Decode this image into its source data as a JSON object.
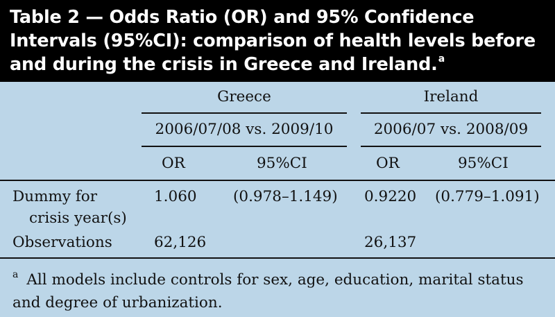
{
  "title": "Table 2 — Odds Ratio (OR) and 95% Confidence Intervals (95%CI): comparison of health levels before and during the crisis in Greece and Ireland.",
  "title_footnote_marker": "a",
  "columns": {
    "greece": {
      "country": "Greece",
      "period": "2006/07/08 vs. 2009/10",
      "or_label": "OR",
      "ci_label": "95%CI"
    },
    "ireland": {
      "country": "Ireland",
      "period": "2006/07 vs. 2008/09",
      "or_label": "OR",
      "ci_label": "95%CI"
    }
  },
  "rows": [
    {
      "label_line1": "Dummy for",
      "label_line2": "crisis year(s)",
      "greece_or": "1.060",
      "greece_ci": "(0.978–1.149)",
      "ireland_or": "0.9220",
      "ireland_ci": "(0.779–1.091)"
    },
    {
      "label_line1": "Observations",
      "greece_or": "62,126",
      "ireland_or": "26,137"
    }
  ],
  "footnote": {
    "marker": "a",
    "text": "All models include controls for sex, age, education, marital status and degree of urbanization."
  }
}
